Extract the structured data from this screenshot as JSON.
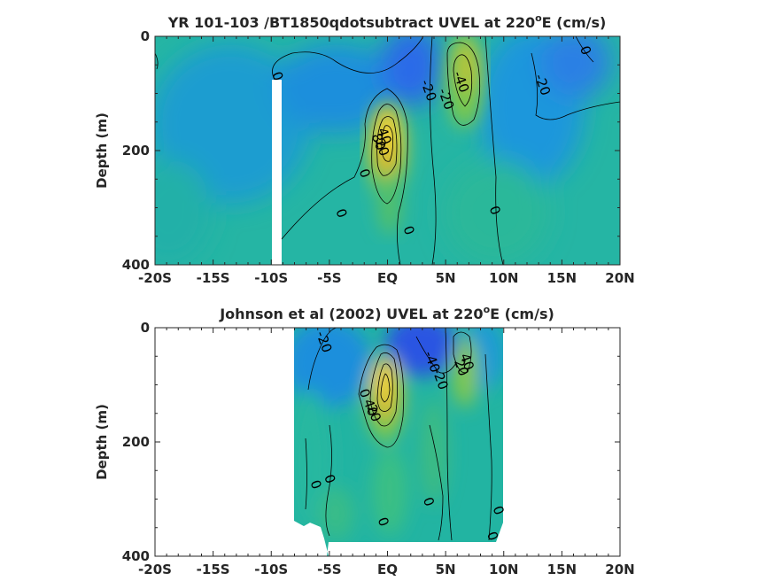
{
  "chart_data": [
    {
      "type": "heatmap",
      "title_main": "YR 101-103 /BT1850qdotsubtract UVEL at 220",
      "title_sup": "o",
      "title_tail": "E (cm/s)",
      "ylabel": "Depth (m)",
      "xlabel": "",
      "x_ticks": [
        "-20S",
        "-15S",
        "-10S",
        "-5S",
        "EQ",
        "5N",
        "10N",
        "15N",
        "20N"
      ],
      "y_ticks": [
        "0",
        "200",
        "400"
      ],
      "xlim": [
        -20,
        20
      ],
      "ylim": [
        0,
        400
      ],
      "grid": false,
      "colormap": "parula",
      "contour_labels": [
        {
          "text": "0",
          "x": -9.5,
          "y": 70
        },
        {
          "text": "0",
          "x": -4,
          "y": 310
        },
        {
          "text": "0",
          "x": -2,
          "y": 240
        },
        {
          "text": "20",
          "x": -0.5,
          "y": 195
        },
        {
          "text": "40",
          "x": -0.3,
          "y": 175
        },
        {
          "text": "80",
          "x": -0.8,
          "y": 185
        },
        {
          "text": "-20",
          "x": 3.5,
          "y": 95
        },
        {
          "text": "-20",
          "x": 5,
          "y": 110
        },
        {
          "text": "-40",
          "x": 6.3,
          "y": 80
        },
        {
          "text": "0",
          "x": 1.8,
          "y": 340
        },
        {
          "text": "0",
          "x": 9.2,
          "y": 305
        },
        {
          "text": "-20",
          "x": 13.3,
          "y": 85
        },
        {
          "text": "0",
          "x": 17,
          "y": 25
        }
      ]
    },
    {
      "type": "heatmap",
      "title_main": "Johnson et al (2002) UVEL at 220",
      "title_sup": "o",
      "title_tail": "E (cm/s)",
      "ylabel": "Depth (m)",
      "xlabel": "",
      "x_ticks": [
        "-20S",
        "-15S",
        "-10S",
        "-5S",
        "EQ",
        "5N",
        "10N",
        "15N",
        "20N"
      ],
      "y_ticks": [
        "0",
        "200",
        "400"
      ],
      "xlim": [
        -20,
        20
      ],
      "ylim": [
        0,
        400
      ],
      "grid": false,
      "colormap": "parula",
      "data_extent_x": [
        -8,
        10
      ],
      "contour_labels": [
        {
          "text": "-20",
          "x": -5.5,
          "y": 25
        },
        {
          "text": "0",
          "x": -2,
          "y": 115
        },
        {
          "text": "20",
          "x": -1.2,
          "y": 150
        },
        {
          "text": "40",
          "x": -1.5,
          "y": 140
        },
        {
          "text": "-40",
          "x": 3.8,
          "y": 60
        },
        {
          "text": "-20",
          "x": 4.5,
          "y": 90
        },
        {
          "text": "20",
          "x": 6.3,
          "y": 70
        },
        {
          "text": "40",
          "x": 6.8,
          "y": 60
        },
        {
          "text": "0",
          "x": -5,
          "y": 265
        },
        {
          "text": "0",
          "x": -6.2,
          "y": 275
        },
        {
          "text": "0",
          "x": 3.5,
          "y": 305
        },
        {
          "text": "0",
          "x": -0.4,
          "y": 340
        },
        {
          "text": "0",
          "x": 9.5,
          "y": 320
        },
        {
          "text": "0",
          "x": 9,
          "y": 365
        }
      ]
    }
  ]
}
